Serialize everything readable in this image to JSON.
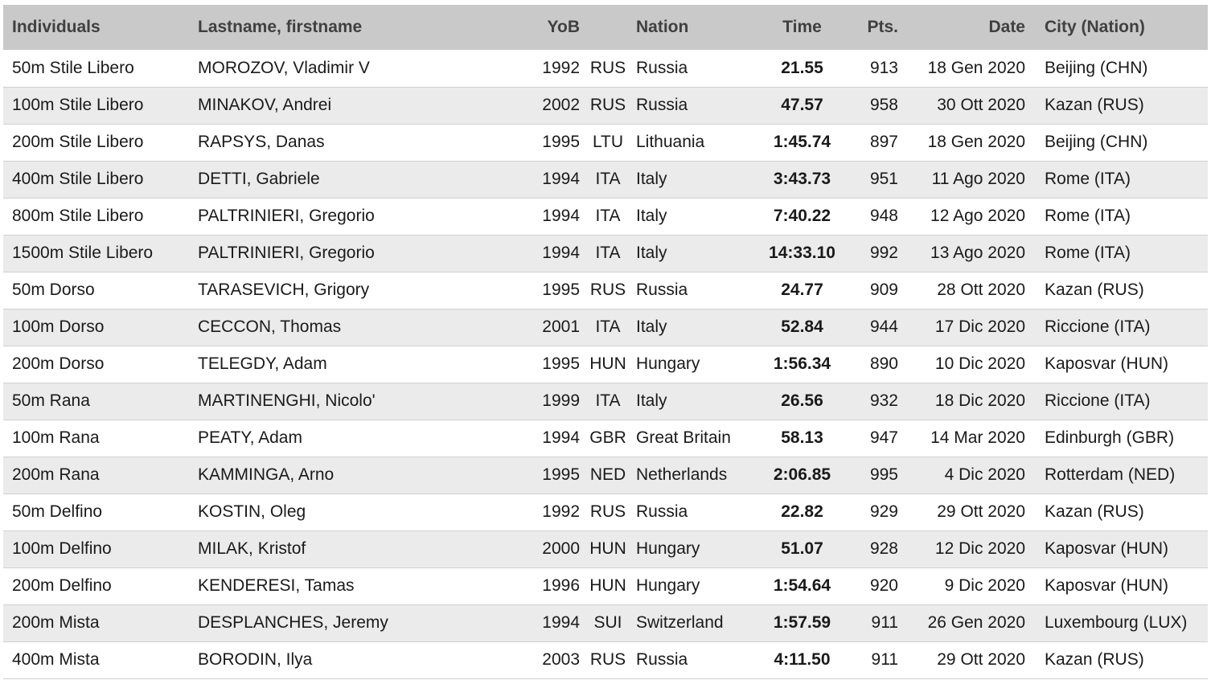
{
  "headers": {
    "individuals": "Individuals",
    "name": "Lastname, firstname",
    "yob": "YoB",
    "code": "",
    "nation": "Nation",
    "time": "Time",
    "pts": "Pts.",
    "date": "Date",
    "city": "City (Nation)"
  },
  "rows": [
    {
      "event": "50m Stile Libero",
      "name": "MOROZOV, Vladimir V",
      "yob": "1992",
      "code": "RUS",
      "nation": "Russia",
      "time": "21.55",
      "pts": "913",
      "date": "18 Gen 2020",
      "city": "Beijing (CHN)"
    },
    {
      "event": "100m Stile Libero",
      "name": "MINAKOV, Andrei",
      "yob": "2002",
      "code": "RUS",
      "nation": "Russia",
      "time": "47.57",
      "pts": "958",
      "date": "30 Ott 2020",
      "city": "Kazan (RUS)"
    },
    {
      "event": "200m Stile Libero",
      "name": "RAPSYS, Danas",
      "yob": "1995",
      "code": "LTU",
      "nation": "Lithuania",
      "time": "1:45.74",
      "pts": "897",
      "date": "18 Gen 2020",
      "city": "Beijing (CHN)"
    },
    {
      "event": "400m Stile Libero",
      "name": "DETTI, Gabriele",
      "yob": "1994",
      "code": "ITA",
      "nation": "Italy",
      "time": "3:43.73",
      "pts": "951",
      "date": "11 Ago 2020",
      "city": "Rome (ITA)"
    },
    {
      "event": "800m Stile Libero",
      "name": "PALTRINIERI, Gregorio",
      "yob": "1994",
      "code": "ITA",
      "nation": "Italy",
      "time": "7:40.22",
      "pts": "948",
      "date": "12 Ago 2020",
      "city": "Rome (ITA)"
    },
    {
      "event": "1500m Stile Libero",
      "name": "PALTRINIERI, Gregorio",
      "yob": "1994",
      "code": "ITA",
      "nation": "Italy",
      "time": "14:33.10",
      "pts": "992",
      "date": "13 Ago 2020",
      "city": "Rome (ITA)"
    },
    {
      "event": "50m Dorso",
      "name": "TARASEVICH, Grigory",
      "yob": "1995",
      "code": "RUS",
      "nation": "Russia",
      "time": "24.77",
      "pts": "909",
      "date": "28 Ott 2020",
      "city": "Kazan (RUS)"
    },
    {
      "event": "100m Dorso",
      "name": "CECCON, Thomas",
      "yob": "2001",
      "code": "ITA",
      "nation": "Italy",
      "time": "52.84",
      "pts": "944",
      "date": "17 Dic 2020",
      "city": "Riccione (ITA)"
    },
    {
      "event": "200m Dorso",
      "name": "TELEGDY, Adam",
      "yob": "1995",
      "code": "HUN",
      "nation": "Hungary",
      "time": "1:56.34",
      "pts": "890",
      "date": "10 Dic 2020",
      "city": "Kaposvar (HUN)"
    },
    {
      "event": "50m Rana",
      "name": "MARTINENGHI, Nicolo'",
      "yob": "1999",
      "code": "ITA",
      "nation": "Italy",
      "time": "26.56",
      "pts": "932",
      "date": "18 Dic 2020",
      "city": "Riccione (ITA)"
    },
    {
      "event": "100m Rana",
      "name": "PEATY, Adam",
      "yob": "1994",
      "code": "GBR",
      "nation": "Great Britain",
      "time": "58.13",
      "pts": "947",
      "date": "14 Mar 2020",
      "city": "Edinburgh (GBR)"
    },
    {
      "event": "200m Rana",
      "name": "KAMMINGA, Arno",
      "yob": "1995",
      "code": "NED",
      "nation": "Netherlands",
      "time": "2:06.85",
      "pts": "995",
      "date": "4 Dic 2020",
      "city": "Rotterdam (NED)"
    },
    {
      "event": "50m Delfino",
      "name": "KOSTIN, Oleg",
      "yob": "1992",
      "code": "RUS",
      "nation": "Russia",
      "time": "22.82",
      "pts": "929",
      "date": "29 Ott 2020",
      "city": "Kazan (RUS)"
    },
    {
      "event": "100m Delfino",
      "name": "MILAK, Kristof",
      "yob": "2000",
      "code": "HUN",
      "nation": "Hungary",
      "time": "51.07",
      "pts": "928",
      "date": "12 Dic 2020",
      "city": "Kaposvar (HUN)"
    },
    {
      "event": "200m Delfino",
      "name": "KENDERESI, Tamas",
      "yob": "1996",
      "code": "HUN",
      "nation": "Hungary",
      "time": "1:54.64",
      "pts": "920",
      "date": "9 Dic 2020",
      "city": "Kaposvar (HUN)"
    },
    {
      "event": "200m Mista",
      "name": "DESPLANCHES, Jeremy",
      "yob": "1994",
      "code": "SUI",
      "nation": "Switzerland",
      "time": "1:57.59",
      "pts": "911",
      "date": "26 Gen 2020",
      "city": "Luxembourg (LUX)"
    },
    {
      "event": "400m Mista",
      "name": "BORODIN, Ilya",
      "yob": "2003",
      "code": "RUS",
      "nation": "Russia",
      "time": "4:11.50",
      "pts": "911",
      "date": "29 Ott 2020",
      "city": "Kazan (RUS)"
    }
  ]
}
